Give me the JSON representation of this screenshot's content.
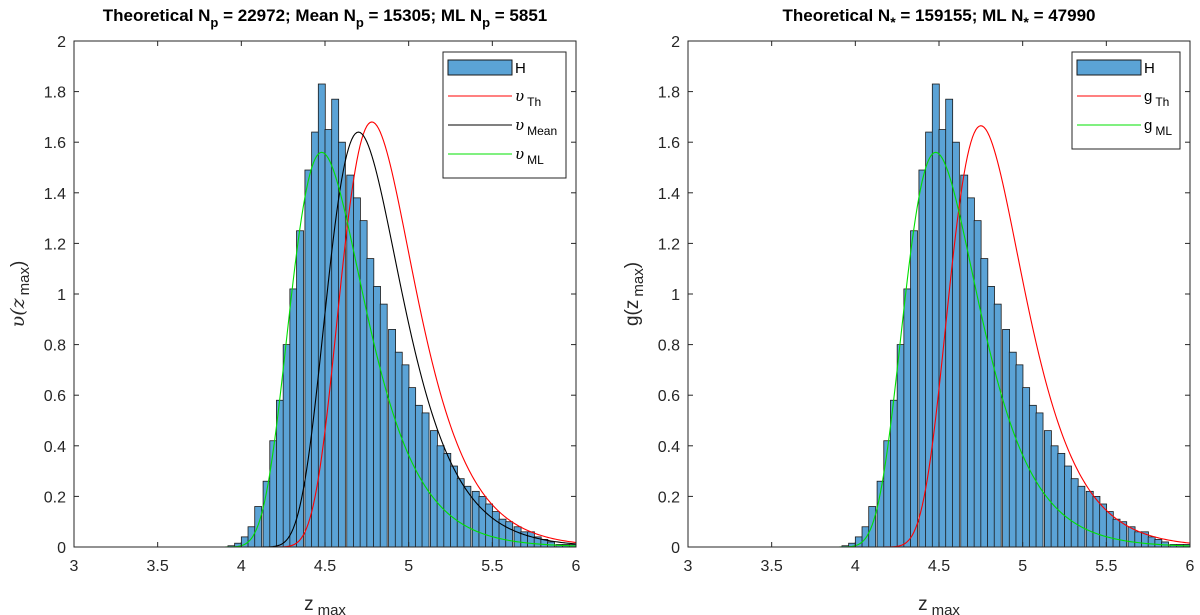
{
  "chart_data": [
    {
      "type": "histogram+line",
      "title_parts": {
        "p1": "Theoretical N",
        "s1": "p",
        "p2": " = 22972; Mean N",
        "s2": "p",
        "p3": " = 15305; ML N",
        "s3": "p",
        "p4": " = 5851"
      },
      "xlabel": "z",
      "xlabel_sub": "max",
      "ylabel": "υ(z",
      "ylabel_sub": "max",
      "ylabel_end": ")",
      "xlim": [
        3,
        6
      ],
      "ylim": [
        0,
        2
      ],
      "xticks": [
        "3",
        "3.5",
        "4",
        "4.5",
        "5",
        "5.5",
        "6"
      ],
      "yticks": [
        "0",
        "0.2",
        "0.4",
        "0.6",
        "0.8",
        "1",
        "1.2",
        "1.4",
        "1.6",
        "1.8",
        "2"
      ],
      "histogram": {
        "name": "H",
        "color": "#5ba3d6",
        "bin_width": 0.0417,
        "bin_starts": [
          3.92,
          3.96,
          4.0,
          4.04,
          4.08,
          4.13,
          4.17,
          4.21,
          4.25,
          4.29,
          4.33,
          4.38,
          4.42,
          4.46,
          4.5,
          4.54,
          4.58,
          4.63,
          4.67,
          4.71,
          4.75,
          4.79,
          4.83,
          4.88,
          4.92,
          4.96,
          5.0,
          5.04,
          5.08,
          5.13,
          5.17,
          5.21,
          5.25,
          5.29,
          5.33,
          5.38,
          5.42,
          5.46,
          5.5,
          5.54,
          5.58,
          5.63,
          5.67,
          5.71,
          5.75,
          5.79,
          5.83,
          5.88,
          5.92,
          5.96
        ],
        "values": [
          0.005,
          0.015,
          0.04,
          0.08,
          0.16,
          0.26,
          0.42,
          0.58,
          0.8,
          1.02,
          1.25,
          1.49,
          1.64,
          1.83,
          1.65,
          1.77,
          1.6,
          1.47,
          1.38,
          1.29,
          1.14,
          1.03,
          0.96,
          0.86,
          0.77,
          0.72,
          0.63,
          0.56,
          0.53,
          0.46,
          0.4,
          0.37,
          0.32,
          0.27,
          0.24,
          0.22,
          0.2,
          0.17,
          0.14,
          0.11,
          0.1,
          0.08,
          0.06,
          0.06,
          0.04,
          0.03,
          0.02,
          0.01,
          0.01,
          0.01
        ]
      },
      "series": [
        {
          "name": "υ",
          "name_sub": "Th",
          "color": "#ff0000",
          "mode": 4.78,
          "peak": 1.68
        },
        {
          "name": "υ",
          "name_sub": "Mean",
          "color": "#000000",
          "mode": 4.7,
          "peak": 1.64
        },
        {
          "name": "υ",
          "name_sub": "ML",
          "color": "#00e000",
          "mode": 4.48,
          "peak": 1.56
        }
      ],
      "legend": "top-right",
      "grid": false
    },
    {
      "type": "histogram+line",
      "title_parts": {
        "p1": "Theoretical N",
        "s1": "*",
        "p2": " = 159155; ML N",
        "s2": "*",
        "p3": " = 47990"
      },
      "xlabel": "z",
      "xlabel_sub": "max",
      "ylabel": "g(z",
      "ylabel_sub": "max",
      "ylabel_end": ")",
      "xlim": [
        3,
        6
      ],
      "ylim": [
        0,
        2
      ],
      "xticks": [
        "3",
        "3.5",
        "4",
        "4.5",
        "5",
        "5.5",
        "6"
      ],
      "yticks": [
        "0",
        "0.2",
        "0.4",
        "0.6",
        "0.8",
        "1",
        "1.2",
        "1.4",
        "1.6",
        "1.8",
        "2"
      ],
      "histogram": {
        "name": "H",
        "color": "#5ba3d6",
        "bin_width": 0.0417,
        "bin_starts": [
          3.92,
          3.96,
          4.0,
          4.04,
          4.08,
          4.13,
          4.17,
          4.21,
          4.25,
          4.29,
          4.33,
          4.38,
          4.42,
          4.46,
          4.5,
          4.54,
          4.58,
          4.63,
          4.67,
          4.71,
          4.75,
          4.79,
          4.83,
          4.88,
          4.92,
          4.96,
          5.0,
          5.04,
          5.08,
          5.13,
          5.17,
          5.21,
          5.25,
          5.29,
          5.33,
          5.38,
          5.42,
          5.46,
          5.5,
          5.54,
          5.58,
          5.63,
          5.67,
          5.71,
          5.75,
          5.79,
          5.83,
          5.88,
          5.92,
          5.96
        ],
        "values": [
          0.005,
          0.015,
          0.04,
          0.08,
          0.16,
          0.26,
          0.42,
          0.58,
          0.8,
          1.02,
          1.25,
          1.49,
          1.64,
          1.83,
          1.65,
          1.77,
          1.6,
          1.47,
          1.38,
          1.29,
          1.14,
          1.03,
          0.96,
          0.86,
          0.77,
          0.72,
          0.63,
          0.56,
          0.53,
          0.46,
          0.4,
          0.37,
          0.32,
          0.27,
          0.24,
          0.22,
          0.2,
          0.17,
          0.14,
          0.11,
          0.1,
          0.08,
          0.06,
          0.06,
          0.04,
          0.03,
          0.02,
          0.01,
          0.01,
          0.01
        ]
      },
      "series": [
        {
          "name": "g",
          "name_sub": "Th",
          "color": "#ff0000",
          "mode": 4.75,
          "peak": 1.665
        },
        {
          "name": "g",
          "name_sub": "ML",
          "color": "#00e000",
          "mode": 4.48,
          "peak": 1.56
        }
      ],
      "legend": "top-right",
      "grid": false
    }
  ]
}
